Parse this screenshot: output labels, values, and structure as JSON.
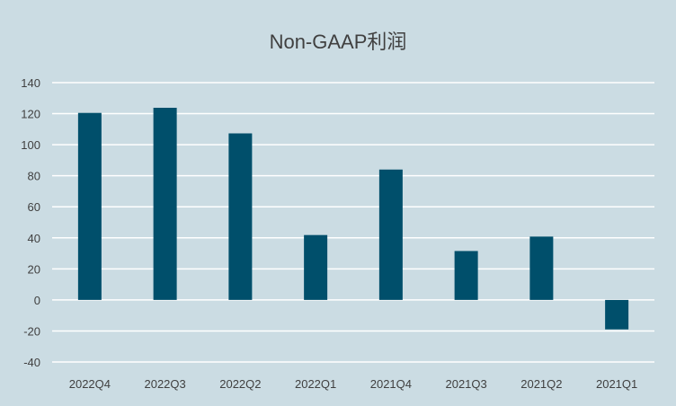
{
  "chart_data": {
    "type": "bar",
    "title": "Non-GAAP利润",
    "categories": [
      "2022Q4",
      "2022Q3",
      "2022Q2",
      "2022Q1",
      "2021Q4",
      "2021Q3",
      "2021Q2",
      "2021Q1"
    ],
    "values": [
      120.5,
      123.8,
      107.3,
      41.8,
      84.0,
      31.5,
      40.8,
      -19.0
    ],
    "ylim": [
      -40,
      140
    ],
    "yticks": [
      -40,
      -20,
      0,
      20,
      40,
      60,
      80,
      100,
      120,
      140
    ],
    "ytick_labels": [
      "-40",
      "-20",
      "0",
      "20",
      "40",
      "60",
      "80",
      "100",
      "120",
      "140"
    ],
    "xlabel": "",
    "ylabel": "",
    "grid": true,
    "legend": "none",
    "colors": {
      "bar": "#004f6b",
      "grid": "#ffffff",
      "background": "#cbdce3",
      "text": "#404040"
    }
  }
}
